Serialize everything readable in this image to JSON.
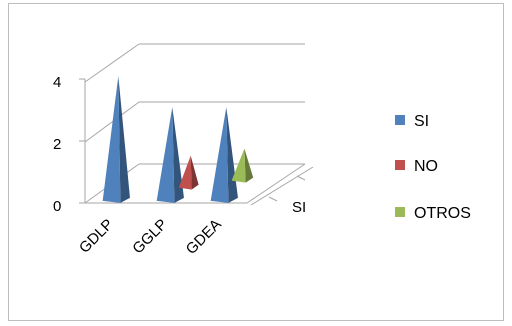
{
  "chart_data": {
    "type": "bar",
    "style": "3d-pyramid",
    "categories": [
      "GDLP",
      "GGLP",
      "GDEA"
    ],
    "depth_categories": [
      "SI"
    ],
    "series": [
      {
        "name": "SI",
        "values": [
          4,
          3,
          3
        ],
        "color": "#4f81bd"
      },
      {
        "name": "NO",
        "values": [
          0,
          1,
          0
        ],
        "color": "#c0504d"
      },
      {
        "name": "OTROS",
        "values": [
          0,
          0,
          1
        ],
        "color": "#9bbb59"
      }
    ],
    "y_ticks": [
      "0",
      "2",
      "4"
    ],
    "ylim": [
      0,
      4
    ],
    "grid": true,
    "legend_position": "right"
  }
}
